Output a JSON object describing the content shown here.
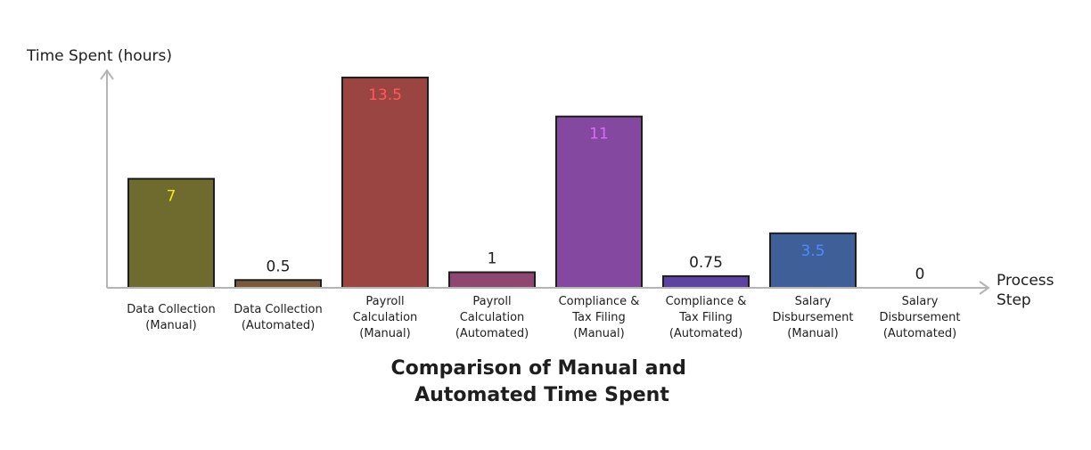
{
  "chart_data": {
    "type": "bar",
    "title_lines": [
      "Comparison of Manual and",
      "Automated Time Spent"
    ],
    "ylabel": "Time Spent (hours)",
    "xlabel_lines": [
      "Process",
      "Step"
    ],
    "ylim": [
      0,
      14
    ],
    "categories": [
      [
        "Data Collection",
        "(Manual)"
      ],
      [
        "Data Collection",
        "(Automated)"
      ],
      [
        "Payroll",
        "Calculation",
        "(Manual)"
      ],
      [
        "Payroll",
        "Calculation",
        "(Automated)"
      ],
      [
        "Compliance &",
        "Tax Filing",
        "(Manual)"
      ],
      [
        "Compliance &",
        "Tax Filing",
        "(Automated)"
      ],
      [
        "Salary",
        "Disbursement",
        "(Manual)"
      ],
      [
        "Salary",
        "Disbursement",
        "(Automated)"
      ]
    ],
    "values": [
      7,
      0.5,
      13.5,
      1,
      11,
      0.75,
      3.5,
      0
    ],
    "value_labels": [
      "7",
      "0.5",
      "13.5",
      "1",
      "11",
      "0.75",
      "3.5",
      "0"
    ],
    "bar_colors": [
      "#6f6a2e",
      "#7b5a3c",
      "#9a4542",
      "#8f4670",
      "#8548a0",
      "#5c44a0",
      "#3f5f98",
      "#ffffff"
    ],
    "label_colors": [
      "#f5e90c",
      "#1e1e1e",
      "#ff5b5b",
      "#1e1e1e",
      "#d86cf5",
      "#1e1e1e",
      "#4d8bff",
      "#1e1e1e"
    ],
    "grid": false,
    "legend": "none"
  }
}
